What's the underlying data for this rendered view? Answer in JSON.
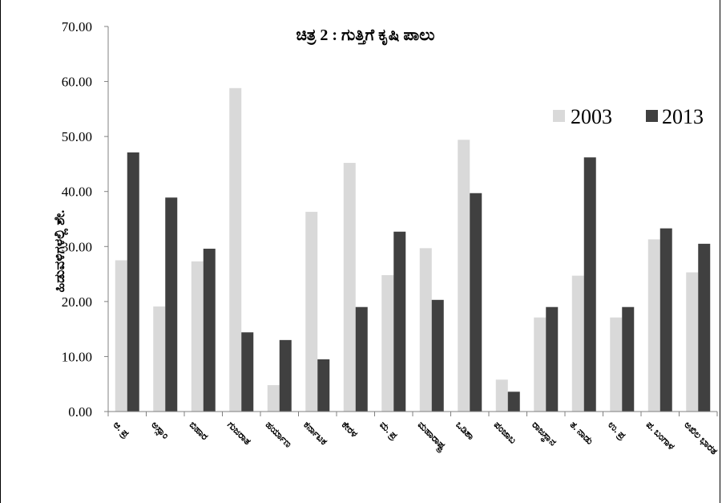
{
  "chart_data": {
    "type": "bar",
    "title": "ಚಿತ್ರ 2 : ಗುತ್ತಿಗೆ ಕೃಷಿ ಪಾಲು",
    "xlabel": "",
    "ylabel": "ಹಿಡುವಳಿಗಳಲ್ಲಿ ಶೇ.",
    "ylim": [
      0,
      70
    ],
    "yticks": [
      0,
      10,
      20,
      30,
      40,
      50,
      60,
      70
    ],
    "ytick_labels": [
      "0.00",
      "10.00",
      "20.00",
      "30.00",
      "40.00",
      "50.00",
      "60.00",
      "70.00"
    ],
    "grid": false,
    "legend": "top-right",
    "categories": [
      "ಆ. ಪ್ರ",
      "ಅಸ್ಸಾಂ",
      "ಬಿಹಾರ",
      "ಗುಜರಾತ",
      "ಹರ್ಯಾಣ",
      "ಕರ್ನಾಟಕ",
      "ಕೇರಳ",
      "ಮ. ಪ್ರ",
      "ಮಹಾರಾಷ್ಟ್ರ",
      "ಒಡಿಶಾ",
      "ಪಂಜಾಬ",
      "ರಾಜಸ್ಥಾನ",
      "ತ. ನಾಡು",
      "ಉ. ಪ್ರ",
      "ಪ. ಬಂಗಾಳ",
      "ಅಖಿಲ ಭಾರತ"
    ],
    "series": [
      {
        "name": "2003",
        "color": "#d9d9d9",
        "values": [
          27.5,
          19.1,
          27.3,
          58.8,
          4.8,
          36.3,
          45.2,
          24.8,
          29.7,
          49.4,
          5.8,
          17.1,
          24.7,
          17.1,
          31.3,
          25.3
        ]
      },
      {
        "name": "2013",
        "color": "#404040",
        "values": [
          47.1,
          38.9,
          29.6,
          14.4,
          13.0,
          9.5,
          19.0,
          32.7,
          20.3,
          39.7,
          3.6,
          19.0,
          46.2,
          19.0,
          33.3,
          30.5
        ]
      }
    ]
  }
}
